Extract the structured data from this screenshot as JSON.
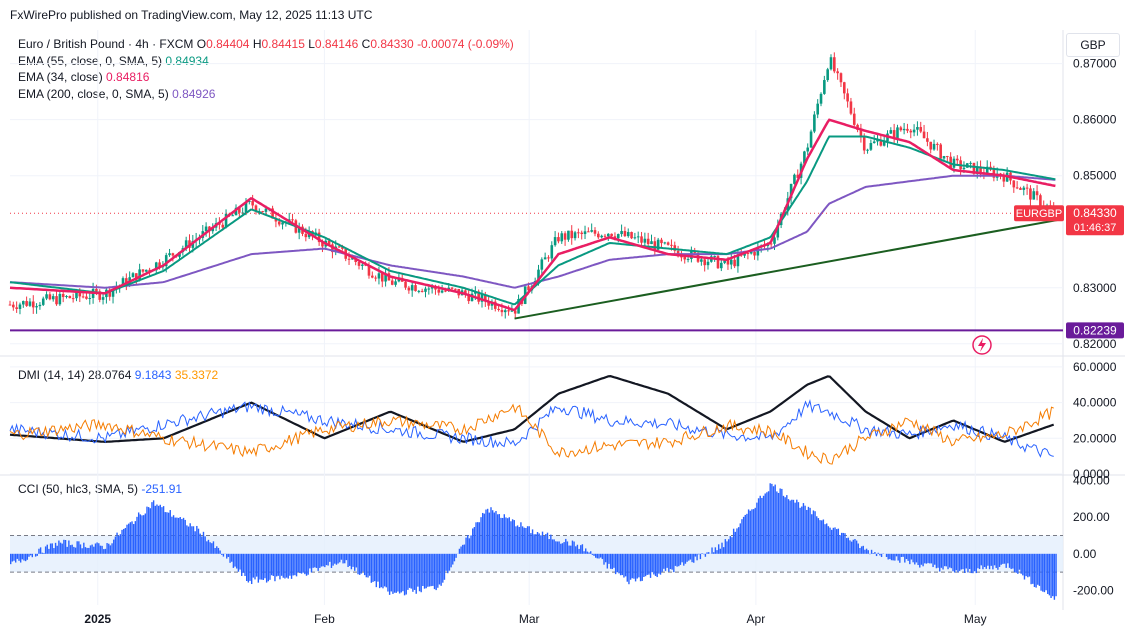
{
  "header": {
    "published_line": "FxWirePro published on TradingView.com, May 12, 2025 11:13 UTC"
  },
  "symbol": {
    "name": "Euro / British Pound · 4h · FXCM",
    "open_label": "O",
    "open": "0.84404",
    "high_label": "H",
    "high": "0.84415",
    "low_label": "L",
    "low": "0.84146",
    "close_label": "C",
    "close": "0.84330",
    "change": "-0.00074 (-0.09%)"
  },
  "indicators": {
    "ema55_label": "EMA (55, close, 0, SMA, 5)",
    "ema55_value": "0.84934",
    "ema34_label": "EMA (34, close)",
    "ema34_value": "0.84816",
    "ema200_label": "EMA (200, close, 0, SMA, 5)",
    "ema200_value": "0.84926",
    "dmi_label": "DMI (14, 14)",
    "dmi_adx": "28.0764",
    "dmi_plus": "9.1843",
    "dmi_minus": "35.3372",
    "cci_label": "CCI (50, hlc3, SMA, 5)",
    "cci_value": "-251.91"
  },
  "currency": "GBP",
  "price_axis": [
    "0.87000",
    "0.86000",
    "0.85000",
    "0.83000",
    "0.82000"
  ],
  "dmi_axis": [
    "60.0000",
    "40.0000",
    "20.0000",
    "0.0000"
  ],
  "cci_axis": [
    "400.00",
    "200.00",
    "0.00",
    "-200.00"
  ],
  "time_axis": [
    "2025",
    "Feb",
    "Mar",
    "Apr",
    "May"
  ],
  "badges": {
    "symbol_tag": "EURGBP",
    "last_price": "0.84330",
    "countdown": "01:46:37",
    "support_level": "0.82239"
  },
  "colors": {
    "up": "#089981",
    "down": "#f23645",
    "ema55": "#089981",
    "ema34": "#e91e63",
    "ema200": "#7e57c2",
    "trendline": "#1b5e20",
    "support": "#6a1b9a",
    "adx": "#131722",
    "di_plus": "#2962ff",
    "di_minus": "#f57c00",
    "cci": "#2962ff"
  },
  "chart_data": [
    {
      "type": "candlestick",
      "title": "Euro / British Pound · 4h · FXCM",
      "timeframe": "4h",
      "ylim": [
        0.818,
        0.876
      ],
      "series_ohlc_anchors": {
        "x": [
          "2024-12-20",
          "2025-01-02",
          "2025-01-10",
          "2025-01-22",
          "2025-02-01",
          "2025-02-10",
          "2025-02-20",
          "2025-02-27",
          "2025-03-05",
          "2025-03-12",
          "2025-03-20",
          "2025-03-28",
          "2025-04-03",
          "2025-04-08",
          "2025-04-11",
          "2025-04-16",
          "2025-04-22",
          "2025-04-28",
          "2025-05-05",
          "2025-05-12"
        ],
        "close": [
          0.827,
          0.829,
          0.835,
          0.845,
          0.838,
          0.831,
          0.829,
          0.826,
          0.839,
          0.84,
          0.837,
          0.834,
          0.838,
          0.855,
          0.871,
          0.855,
          0.859,
          0.852,
          0.85,
          0.8433
        ]
      },
      "ema55": [
        0.831,
        0.829,
        0.833,
        0.844,
        0.839,
        0.833,
        0.83,
        0.827,
        0.834,
        0.838,
        0.837,
        0.836,
        0.839,
        0.849,
        0.857,
        0.857,
        0.855,
        0.852,
        0.851,
        0.84934
      ],
      "ema34": [
        0.83,
        0.829,
        0.834,
        0.846,
        0.838,
        0.832,
        0.829,
        0.826,
        0.836,
        0.839,
        0.836,
        0.835,
        0.838,
        0.853,
        0.86,
        0.858,
        0.856,
        0.851,
        0.85,
        0.84816
      ],
      "ema200": [
        0.831,
        0.83,
        0.831,
        0.836,
        0.837,
        0.834,
        0.832,
        0.83,
        0.832,
        0.835,
        0.836,
        0.836,
        0.837,
        0.84,
        0.845,
        0.848,
        0.849,
        0.85,
        0.85,
        0.84926
      ],
      "trendline": {
        "x": [
          "2025-02-27",
          "2025-05-12"
        ],
        "y": [
          0.8245,
          0.8423
        ]
      },
      "support_line": 0.82239,
      "last_price": 0.8433
    },
    {
      "type": "line",
      "title": "DMI (14, 14)",
      "ylim": [
        0,
        65
      ],
      "series": [
        {
          "name": "ADX",
          "values": [
            22,
            18,
            20,
            40,
            20,
            35,
            18,
            25,
            45,
            55,
            45,
            25,
            35,
            50,
            55,
            35,
            20,
            30,
            18,
            28.0764
          ]
        },
        {
          "name": "+DI",
          "values": [
            25,
            20,
            28,
            38,
            30,
            25,
            20,
            17,
            38,
            30,
            28,
            22,
            20,
            38,
            35,
            25,
            22,
            28,
            20,
            9.1843
          ]
        },
        {
          "name": "-DI",
          "values": [
            22,
            28,
            20,
            12,
            25,
            30,
            25,
            38,
            12,
            16,
            18,
            27,
            24,
            12,
            8,
            20,
            30,
            18,
            22,
            35.3372
          ]
        }
      ]
    },
    {
      "type": "histogram",
      "title": "CCI (50, hlc3, SMA, 5)",
      "ylim": [
        -280,
        420
      ],
      "bands": [
        100,
        -100
      ],
      "values": [
        -60,
        60,
        40,
        280,
        120,
        -150,
        -120,
        -40,
        -220,
        -180,
        250,
        120,
        40,
        -150,
        -80,
        50,
        380,
        200,
        20,
        -50,
        -100,
        -60,
        -251.91
      ]
    }
  ]
}
